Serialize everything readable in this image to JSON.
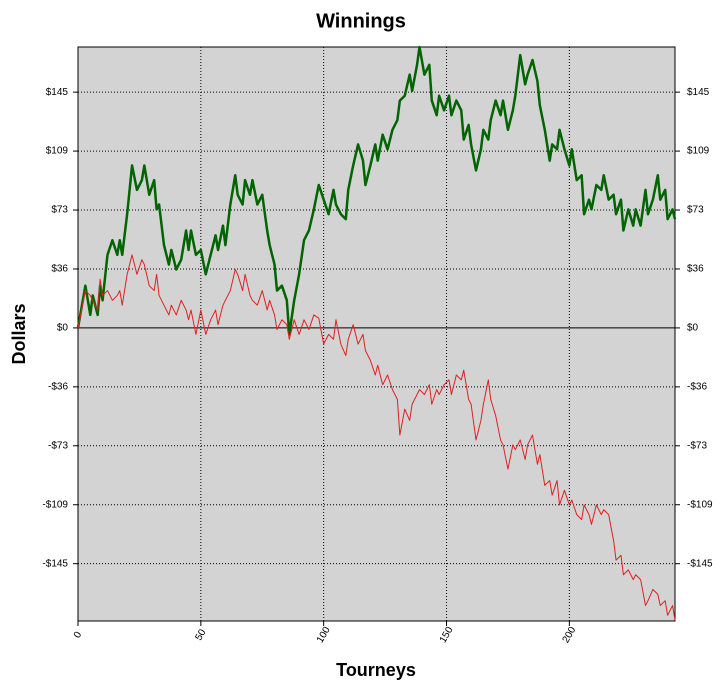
{
  "chart_data": {
    "type": "line",
    "title": "Winnings",
    "x_label": "Tourneys",
    "y_label": "Dollars",
    "x": [
      0,
      3,
      5,
      6,
      8,
      9,
      10,
      12,
      14,
      16,
      17,
      18,
      20,
      22,
      24,
      26,
      27,
      29,
      31,
      32,
      33,
      35,
      37,
      38,
      40,
      42,
      44,
      45,
      46,
      48,
      50,
      52,
      54,
      56,
      57,
      59,
      60,
      62,
      64,
      65,
      67,
      68,
      70,
      71,
      73,
      75,
      77,
      78,
      80,
      81,
      83,
      85,
      86,
      88,
      90,
      92,
      94,
      96,
      98,
      100,
      102,
      104,
      105,
      107,
      109,
      110,
      112,
      114,
      116,
      117,
      119,
      121,
      122,
      124,
      126,
      128,
      130,
      131,
      133,
      135,
      136,
      138,
      139,
      141,
      143,
      144,
      146,
      147,
      149,
      151,
      152,
      154,
      156,
      157,
      159,
      160,
      162,
      164,
      165,
      167,
      168,
      170,
      172,
      173,
      175,
      177,
      178,
      180,
      182,
      183,
      185,
      187,
      188,
      190,
      192,
      193,
      195,
      196,
      198,
      200,
      201,
      203,
      205,
      206,
      208,
      209,
      211,
      213,
      214,
      216,
      218,
      219,
      221,
      222,
      224,
      226,
      227,
      229,
      231,
      232,
      234,
      236,
      237,
      239,
      240,
      242,
      243
    ],
    "series": [
      {
        "color": "#006400",
        "width": 2.5,
        "values": [
          0,
          26,
          8,
          20,
          8,
          26,
          17,
          45,
          54,
          45,
          54,
          45,
          70,
          100,
          85,
          91,
          100,
          82,
          91,
          73,
          76,
          51,
          39,
          48,
          36,
          42,
          60,
          48,
          60,
          45,
          48,
          33,
          45,
          57,
          48,
          63,
          51,
          76,
          94,
          82,
          76,
          91,
          82,
          91,
          76,
          82,
          60,
          51,
          39,
          23,
          26,
          17,
          -4,
          17,
          33,
          54,
          60,
          73,
          88,
          79,
          70,
          85,
          76,
          70,
          67,
          85,
          100,
          113,
          103,
          88,
          100,
          113,
          103,
          119,
          110,
          122,
          128,
          140,
          143,
          156,
          146,
          162,
          173,
          156,
          162,
          140,
          131,
          143,
          134,
          143,
          131,
          140,
          134,
          116,
          125,
          113,
          97,
          110,
          122,
          116,
          128,
          140,
          131,
          140,
          122,
          134,
          143,
          168,
          150,
          156,
          165,
          152,
          137,
          122,
          103,
          113,
          110,
          122,
          110,
          100,
          110,
          91,
          94,
          70,
          79,
          73,
          88,
          85,
          94,
          79,
          82,
          70,
          79,
          60,
          73,
          63,
          73,
          63,
          85,
          70,
          79,
          94,
          79,
          85,
          67,
          73,
          67
        ]
      },
      {
        "color": "#e02020",
        "width": 1,
        "values": [
          0,
          23,
          20,
          17,
          11,
          30,
          20,
          23,
          17,
          20,
          23,
          14,
          33,
          45,
          33,
          42,
          39,
          26,
          23,
          33,
          20,
          14,
          8,
          14,
          8,
          17,
          11,
          5,
          11,
          -4,
          11,
          -4,
          5,
          11,
          2,
          14,
          17,
          23,
          36,
          33,
          23,
          33,
          20,
          17,
          14,
          23,
          11,
          17,
          8,
          -1,
          5,
          2,
          -7,
          5,
          -4,
          5,
          -1,
          8,
          6,
          -10,
          -4,
          -7,
          5,
          -10,
          -17,
          -7,
          2,
          -10,
          -4,
          -14,
          -20,
          -29,
          -23,
          -35,
          -29,
          -38,
          -44,
          -66,
          -50,
          -57,
          -47,
          -41,
          -38,
          -41,
          -35,
          -47,
          -38,
          -41,
          -35,
          -32,
          -41,
          -29,
          -32,
          -26,
          -44,
          -47,
          -69,
          -57,
          -47,
          -32,
          -44,
          -54,
          -69,
          -72,
          -87,
          -72,
          -75,
          -69,
          -81,
          -72,
          -66,
          -84,
          -78,
          -97,
          -94,
          -103,
          -94,
          -109,
          -100,
          -109,
          -106,
          -115,
          -118,
          -109,
          -115,
          -121,
          -109,
          -115,
          -112,
          -115,
          -131,
          -143,
          -140,
          -152,
          -149,
          -155,
          -152,
          -155,
          -171,
          -168,
          -161,
          -164,
          -171,
          -168,
          -177,
          -171,
          -180
        ]
      }
    ],
    "xlim": [
      0,
      243
    ],
    "xticks": [
      0,
      50,
      100,
      150,
      200
    ],
    "ylim": [
      -180.5,
      173
    ],
    "yticks": [
      {
        "value": -145.2,
        "label": "-$145"
      },
      {
        "value": -108.9,
        "label": "-$109"
      },
      {
        "value": -72.6,
        "label": "-$73"
      },
      {
        "value": -36.3,
        "label": "-$36"
      },
      {
        "value": 0,
        "label": "$0"
      },
      {
        "value": 36.3,
        "label": "$36"
      },
      {
        "value": 72.6,
        "label": "$73"
      },
      {
        "value": 108.9,
        "label": "$109"
      },
      {
        "value": 145.2,
        "label": "$145"
      }
    ],
    "grid": true,
    "plot_background": "#d3d3d3"
  }
}
